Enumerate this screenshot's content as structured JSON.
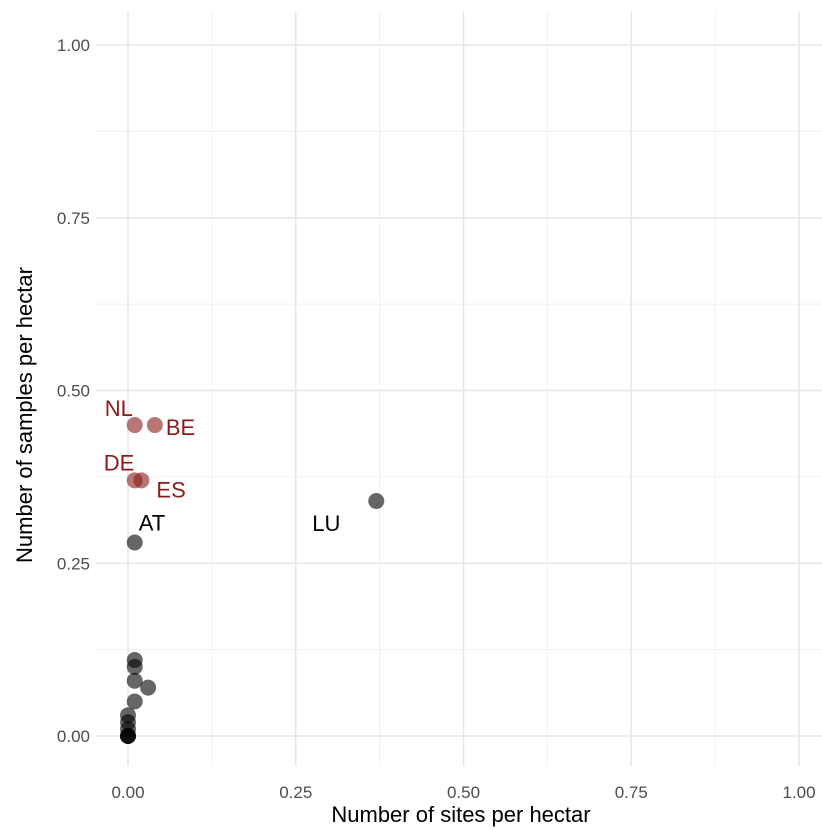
{
  "chart_data": {
    "type": "scatter",
    "title": "",
    "xlabel": "Number of sites per hectar",
    "ylabel": "Number of samples per hectar",
    "xlim": [
      -0.035,
      1.035
    ],
    "ylim": [
      -0.05,
      1.05
    ],
    "xticks": [
      "0.00",
      "0.25",
      "0.50",
      "0.75",
      "1.00"
    ],
    "yticks": [
      "0.00",
      "0.25",
      "0.50",
      "0.75",
      "1.00"
    ],
    "grid": true,
    "legend": "none",
    "colors": {
      "highlight": "#8b1a1a",
      "default": "#000000",
      "point_opacity": 0.6
    },
    "points": [
      {
        "x": 0.01,
        "y": 0.45,
        "label": "NL",
        "highlight": true
      },
      {
        "x": 0.04,
        "y": 0.45,
        "label": "BE",
        "highlight": true
      },
      {
        "x": 0.01,
        "y": 0.37,
        "label": "DE",
        "highlight": true
      },
      {
        "x": 0.02,
        "y": 0.37,
        "label": "ES",
        "highlight": true
      },
      {
        "x": 0.01,
        "y": 0.28,
        "label": "AT",
        "highlight": false
      },
      {
        "x": 0.37,
        "y": 0.34,
        "label": "LU",
        "highlight": false
      },
      {
        "x": 0.01,
        "y": 0.11,
        "label": "",
        "highlight": false
      },
      {
        "x": 0.01,
        "y": 0.1,
        "label": "",
        "highlight": false
      },
      {
        "x": 0.01,
        "y": 0.08,
        "label": "",
        "highlight": false
      },
      {
        "x": 0.03,
        "y": 0.07,
        "label": "",
        "highlight": false
      },
      {
        "x": 0.01,
        "y": 0.05,
        "label": "",
        "highlight": false
      },
      {
        "x": 0.0,
        "y": 0.03,
        "label": "",
        "highlight": false
      },
      {
        "x": 0.0,
        "y": 0.02,
        "label": "",
        "highlight": false
      },
      {
        "x": 0.0,
        "y": 0.01,
        "label": "",
        "highlight": false
      },
      {
        "x": 0.0,
        "y": 0.0,
        "label": "",
        "highlight": false
      },
      {
        "x": 0.0,
        "y": 0.0,
        "label": "",
        "highlight": false
      },
      {
        "x": 0.0,
        "y": 0.0,
        "label": "",
        "highlight": false
      }
    ]
  }
}
